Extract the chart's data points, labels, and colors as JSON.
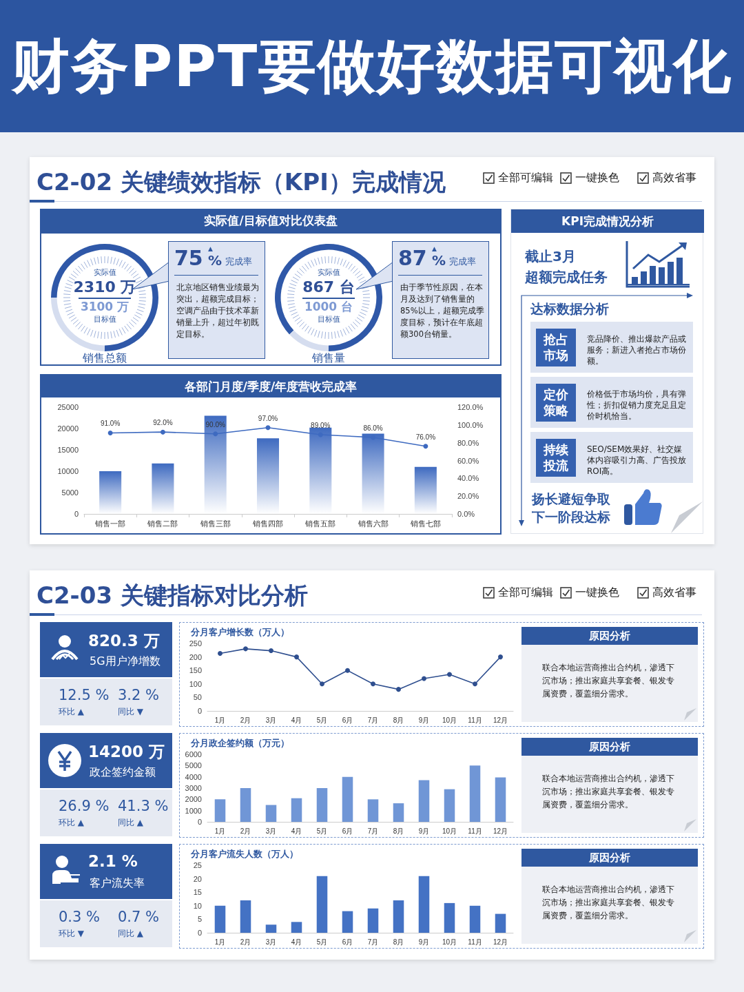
{
  "chart_data": [
    {
      "type": "other",
      "title": "财务PPT要做好数据可视化"
    },
    {
      "type": "other",
      "title": "C2-02 关键绩效指标（KPI）完成情况",
      "annotations": [
        "全部可编辑",
        "一键换色",
        "高效省事",
        "实际值/目标值对比仪表盘"
      ]
    },
    {
      "type": "donut",
      "title": "销售总额",
      "categories": [
        null,
        null
      ],
      "values": [
        75,
        25
      ],
      "colors": [
        "#2f58a8",
        "#d5ddef"
      ],
      "annotations": [
        "实际值",
        "2310 万",
        "3100 万",
        "目标值",
        "75",
        "▲",
        "%",
        "完成率",
        "北京地区销售业绩最为突出，超额完成目标；空调产品由于技术革新销量上升，超过年初既定目标。"
      ]
    },
    {
      "type": "donut",
      "title": "销售量",
      "categories": [
        null,
        null
      ],
      "values": [
        87,
        13
      ],
      "colors": [
        "#2f58a8",
        "#d5ddef"
      ],
      "annotations": [
        "实际值",
        "867 台",
        "1000 台",
        "目标值",
        "87",
        "▲",
        "%",
        "完成率",
        "由于季节性原因，在本月及达到了销售量的85%以上，超额完成季度目标，预计在年底超额300台销量。"
      ]
    },
    {
      "type": "bar",
      "title": "各部门月度/季度/年度营收完成率",
      "categories": [
        "销售一部",
        "销售二部",
        "销售三部",
        "销售四部",
        "销售五部",
        "销售六部",
        "销售七部"
      ],
      "series": [
        {
          "type": "bar",
          "color": "#3e6ac0",
          "values": [
            10000,
            11800,
            23000,
            17700,
            20200,
            18800,
            11000
          ]
        },
        {
          "type": "line",
          "axis": "y2",
          "color": "#3e6ac0",
          "values": [
            91,
            92,
            90,
            97,
            89,
            86,
            76
          ],
          "value_labels": [
            "91.0%",
            "92.0%",
            "90.0%",
            "97.0%",
            "89.0%",
            "86.0%",
            "76.0%"
          ]
        }
      ],
      "ylim": [
        0,
        25000
      ],
      "yticks": [
        0,
        5000,
        10000,
        15000,
        20000,
        25000
      ],
      "y2lim": [
        0,
        120
      ],
      "y2ticks": [
        {
          "value": 0,
          "label": "0.0%"
        },
        {
          "value": 20,
          "label": "20.0%"
        },
        {
          "value": 40,
          "label": "40.0%"
        },
        {
          "value": 60,
          "label": "60.0%"
        },
        {
          "value": 80,
          "label": "80.0%"
        },
        {
          "value": 100,
          "label": "100.0%"
        },
        {
          "value": 120,
          "label": "120.0%"
        }
      ],
      "marker": "circle"
    },
    {
      "type": "other",
      "title": "KPI完成情况分析",
      "annotations": [
        "截止3月",
        "超额完成任务",
        "达标数据分析",
        "抢占市场",
        "竞品降价、推出爆款产品或服务；新进入者抢占市场份额。",
        "定价策略",
        "价格低于市场均价，具有弹性；折扣促销力度充足且定价时机恰当。",
        "持续投流",
        "SEO/SEM效果好、社交媒体内容吸引力高、广告投放ROI高。",
        "扬长避短争取",
        "下一阶段达标"
      ]
    },
    {
      "type": "other",
      "title": "C2-03 关键指标对比分析",
      "annotations": [
        "全部可编辑",
        "一键换色",
        "高效省事"
      ]
    },
    {
      "type": "line",
      "title": "分月客户增长数（万人）",
      "categories": [
        "1月",
        "2月",
        "3月",
        "4月",
        "5月",
        "6月",
        "7月",
        "8月",
        "9月",
        "10月",
        "11月",
        "12月"
      ],
      "values": [
        213,
        230,
        223,
        200,
        100,
        150,
        100,
        80,
        120,
        135,
        100,
        200
      ],
      "color": "#2f4f8f",
      "ylim": [
        0,
        250
      ],
      "yticks": [
        0,
        50,
        100,
        150,
        200,
        250
      ],
      "marker": "circle",
      "annotations": [
        "820.3 万",
        "5G用户净增数",
        "12.5 %",
        "环比 ▲",
        "3.2 %",
        "同比 ▼",
        "原因分析",
        "联合本地运营商推出合约机，渗透下沉市场；推出家庭共享套餐、银发专属资费，覆盖细分需求。"
      ]
    },
    {
      "type": "bar",
      "title": "分月政企签约额（万元）",
      "categories": [
        "1月",
        "2月",
        "3月",
        "4月",
        "5月",
        "6月",
        "7月",
        "8月",
        "9月",
        "10月",
        "11月",
        "12月"
      ],
      "values": [
        2000,
        3000,
        1500,
        2100,
        3000,
        4000,
        2000,
        1650,
        3700,
        2900,
        5000,
        3950
      ],
      "color": "#7096d6",
      "ylim": [
        0,
        6000
      ],
      "yticks": [
        0,
        1000,
        2000,
        3000,
        4000,
        5000,
        6000
      ],
      "annotations": [
        "14200 万",
        "政企签约金额",
        "26.9 %",
        "环比 ▲",
        "41.3 %",
        "同比 ▲",
        "原因分析",
        "联合本地运营商推出合约机，渗透下沉市场；推出家庭共享套餐、银发专属资费，覆盖细分需求。"
      ]
    },
    {
      "type": "bar",
      "title": "分月客户流失人数（万人）",
      "categories": [
        "1月",
        "2月",
        "3月",
        "4月",
        "5月",
        "6月",
        "7月",
        "8月",
        "9月",
        "10月",
        "11月",
        "12月"
      ],
      "values": [
        10,
        12,
        3,
        4,
        21,
        8,
        9,
        12,
        21,
        11,
        10,
        7
      ],
      "color": "#4472c4",
      "ylim": [
        0,
        25
      ],
      "yticks": [
        0,
        5,
        10,
        15,
        20,
        25
      ],
      "annotations": [
        "2.1 %",
        "客户流失率",
        "0.3 %",
        "环比 ▼",
        "0.7 %",
        "同比 ▲",
        "原因分析",
        "联合本地运营商推出合约机，渗透下沉市场；推出家庭共享套餐、银发专属资费，覆盖细分需求。"
      ]
    }
  ]
}
